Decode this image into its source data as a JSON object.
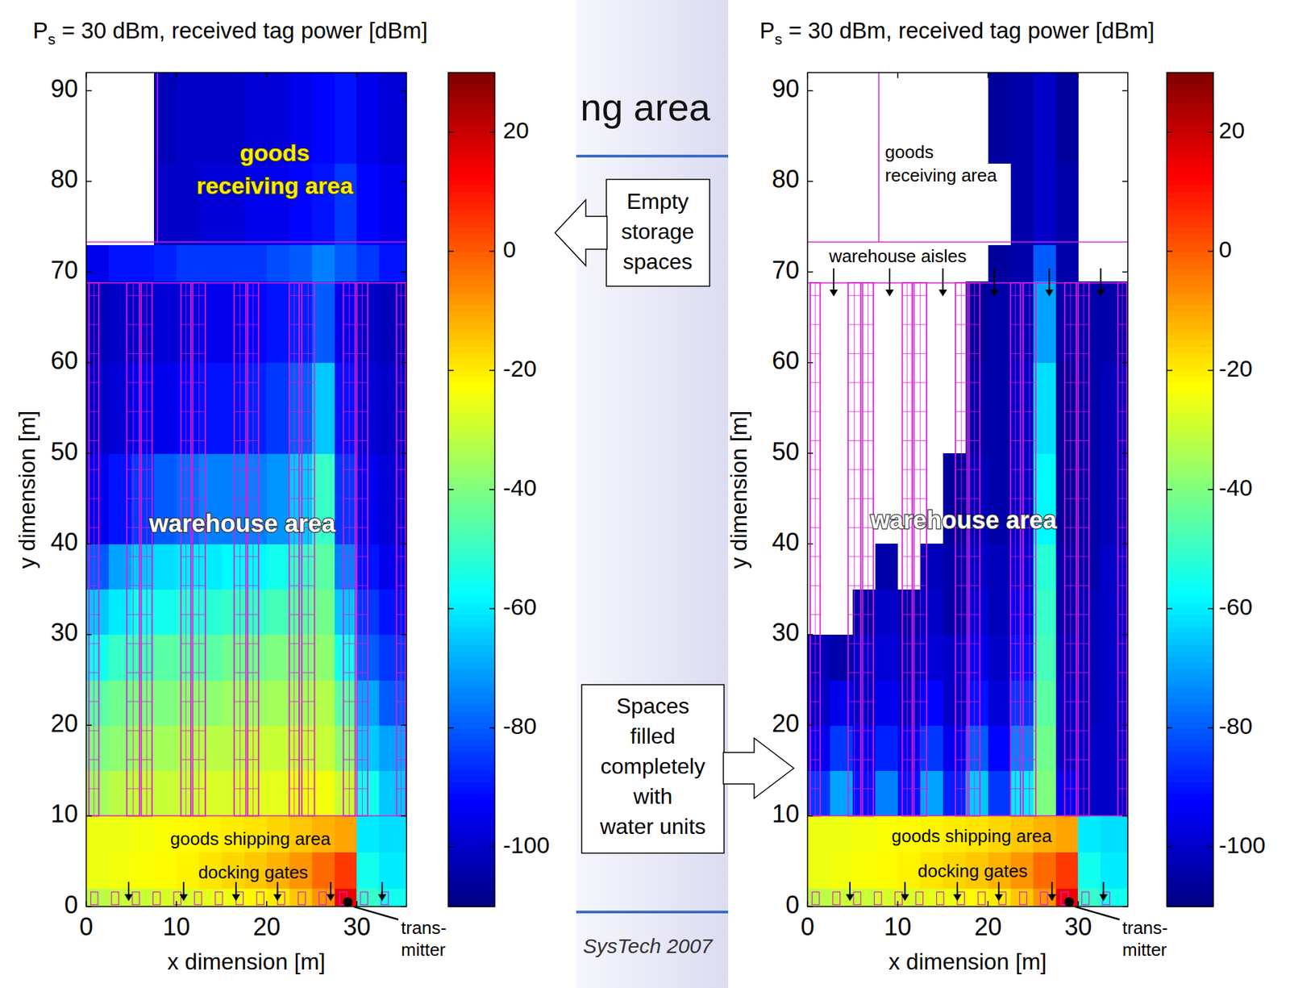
{
  "slide": {
    "title": "ng area",
    "footer": "SysTech 2007",
    "callouts": [
      {
        "lines": [
          "Empty",
          "storage",
          "spaces"
        ]
      },
      {
        "lines": [
          "Spaces",
          "filled",
          "completely",
          "with",
          "water units"
        ]
      }
    ]
  },
  "chart_data": [
    {
      "type": "heatmap",
      "title": "Ps = 30 dBm, received tag power [dBm]",
      "x_label": "x dimension [m]",
      "y_label": "y dimension [m]",
      "xlim": [
        0,
        35.5
      ],
      "ylim": [
        0,
        92
      ],
      "xticks": [
        0,
        10,
        20,
        30
      ],
      "yticks": [
        0,
        10,
        20,
        30,
        40,
        50,
        60,
        70,
        80,
        90
      ],
      "x_edges": [
        0,
        2.5,
        5,
        7.5,
        10,
        12.5,
        15,
        17.5,
        20,
        22.5,
        25,
        27.5,
        30,
        32.5,
        35.5
      ],
      "y_edges": [
        0,
        2,
        6,
        10,
        15,
        20,
        25,
        30,
        35,
        40,
        50,
        60,
        69,
        73,
        82,
        92
      ],
      "cells": [
        [
          -32,
          -30,
          -30,
          -28,
          -28,
          -26,
          -25,
          -22,
          -20,
          -15,
          -8,
          15,
          -50,
          -55
        ],
        [
          -25,
          -24,
          -23,
          -22,
          -21,
          -19,
          -17,
          -15,
          -12,
          -8,
          -2,
          5,
          -55,
          -60
        ],
        [
          -25,
          -25,
          -24,
          -23,
          -22,
          -21,
          -20,
          -19,
          -17,
          -15,
          -12,
          -10,
          -60,
          -62
        ],
        [
          -35,
          -32,
          -30,
          -30,
          -30,
          -28,
          -28,
          -27,
          -26,
          -25,
          -24,
          -30,
          -55,
          -65
        ],
        [
          -40,
          -38,
          -35,
          -35,
          -33,
          -32,
          -32,
          -30,
          -30,
          -30,
          -30,
          -38,
          -65,
          -70
        ],
        [
          -45,
          -42,
          -40,
          -40,
          -38,
          -38,
          -36,
          -36,
          -35,
          -35,
          -33,
          -45,
          -70,
          -80
        ],
        [
          -55,
          -50,
          -48,
          -45,
          -45,
          -45,
          -42,
          -42,
          -40,
          -40,
          -38,
          -55,
          -80,
          -85
        ],
        [
          -65,
          -60,
          -55,
          -55,
          -52,
          -52,
          -50,
          -50,
          -48,
          -45,
          -42,
          -65,
          -85,
          -90
        ],
        [
          -80,
          -70,
          -65,
          -62,
          -60,
          -60,
          -58,
          -58,
          -55,
          -50,
          -45,
          -75,
          -90,
          -95
        ],
        [
          -95,
          -90,
          -85,
          -80,
          -78,
          -75,
          -75,
          -75,
          -72,
          -65,
          -50,
          -85,
          -95,
          -98
        ],
        [
          -100,
          -98,
          -95,
          -95,
          -92,
          -90,
          -90,
          -88,
          -85,
          -80,
          -65,
          -90,
          -98,
          -100
        ],
        [
          -102,
          -100,
          -100,
          -98,
          -98,
          -95,
          -95,
          -92,
          -90,
          -88,
          -80,
          -95,
          -100,
          -102
        ],
        [
          -95,
          -90,
          -90,
          -88,
          -85,
          -85,
          -85,
          -85,
          -82,
          -80,
          -75,
          -80,
          -85,
          -90
        ],
        [
          null,
          null,
          null,
          -100,
          -100,
          -98,
          -98,
          -95,
          -95,
          -92,
          -90,
          -85,
          -92,
          -95
        ],
        [
          null,
          null,
          null,
          -102,
          -100,
          -100,
          -100,
          -98,
          -98,
          -95,
          -92,
          -90,
          -95,
          -98
        ]
      ],
      "color_range": [
        -110,
        30
      ],
      "color_ticks": [
        20,
        0,
        -20,
        -40,
        -60,
        -80,
        -100
      ],
      "transmitter": {
        "x": 29,
        "y": 0.5,
        "label": [
          "trans-",
          "mitter"
        ]
      },
      "labels": {
        "receiving": [
          "goods",
          "receiving area"
        ],
        "warehouse": [
          "warehouse area"
        ],
        "shipping": [
          "goods shipping area"
        ],
        "docking": [
          "docking gates"
        ]
      }
    },
    {
      "type": "heatmap",
      "title": "Ps = 30 dBm, received tag power [dBm]",
      "x_label": "x dimension [m]",
      "y_label": "y dimension [m]",
      "xlim": [
        0,
        35.5
      ],
      "ylim": [
        0,
        92
      ],
      "xticks": [
        0,
        10,
        20,
        30
      ],
      "yticks": [
        0,
        10,
        20,
        30,
        40,
        50,
        60,
        70,
        80,
        90
      ],
      "x_edges": [
        0,
        2.5,
        5,
        7.5,
        10,
        12.5,
        15,
        17.5,
        20,
        22.5,
        25,
        27.5,
        30,
        32.5,
        35.5
      ],
      "y_edges": [
        0,
        2,
        6,
        10,
        15,
        20,
        25,
        30,
        35,
        40,
        50,
        60,
        69,
        73,
        82,
        92
      ],
      "cells": [
        [
          -32,
          -30,
          -30,
          -28,
          -28,
          -26,
          -25,
          -22,
          -20,
          -15,
          -8,
          15,
          -50,
          -55
        ],
        [
          -25,
          -24,
          -23,
          -22,
          -21,
          -19,
          -17,
          -15,
          -12,
          -8,
          -2,
          5,
          -55,
          -60
        ],
        [
          -25,
          -25,
          -24,
          -23,
          -22,
          -21,
          -20,
          -19,
          -17,
          -15,
          -12,
          -10,
          -60,
          -62
        ],
        [
          -85,
          -70,
          -90,
          -75,
          -90,
          -70,
          -88,
          -65,
          -85,
          -60,
          -40,
          -95,
          -100,
          -100
        ],
        [
          -95,
          -85,
          -95,
          -88,
          -95,
          -85,
          -95,
          -80,
          -92,
          -75,
          -42,
          -100,
          -100,
          -100
        ],
        [
          -100,
          -95,
          -100,
          -95,
          -100,
          -92,
          -100,
          -90,
          -98,
          -85,
          -45,
          -100,
          -102,
          -100
        ],
        [
          -102,
          -104,
          -100,
          -98,
          -102,
          -98,
          -100,
          -95,
          -100,
          -90,
          -48,
          -102,
          -102,
          -100
        ],
        [
          null,
          null,
          -104,
          -100,
          -104,
          -100,
          -104,
          -98,
          -102,
          -95,
          -50,
          -104,
          -102,
          -100
        ],
        [
          null,
          null,
          null,
          -104,
          null,
          -102,
          -104,
          -100,
          -102,
          -98,
          -52,
          -104,
          -104,
          -100
        ],
        [
          null,
          null,
          null,
          null,
          null,
          null,
          -106,
          -102,
          -104,
          -100,
          -58,
          -106,
          -104,
          -102
        ],
        [
          null,
          null,
          null,
          null,
          null,
          null,
          null,
          -104,
          -104,
          -100,
          -62,
          -106,
          -104,
          -102
        ],
        [
          null,
          null,
          null,
          null,
          null,
          null,
          null,
          -106,
          -104,
          -102,
          -70,
          -104,
          -104,
          -104
        ],
        [
          null,
          null,
          null,
          null,
          null,
          null,
          null,
          null,
          -106,
          -104,
          -80,
          -104,
          null,
          null
        ],
        [
          null,
          null,
          null,
          null,
          null,
          null,
          null,
          null,
          null,
          -104,
          -100,
          -104,
          null,
          null
        ],
        [
          null,
          null,
          null,
          null,
          null,
          null,
          null,
          null,
          -106,
          -104,
          -100,
          -106,
          null,
          null
        ]
      ],
      "color_range": [
        -110,
        30
      ],
      "color_ticks": [
        20,
        0,
        -20,
        -40,
        -60,
        -80,
        -100
      ],
      "transmitter": {
        "x": 29,
        "y": 0.5,
        "label": [
          "trans-",
          "mitter"
        ]
      },
      "labels": {
        "receiving": [
          "goods",
          "receiving area"
        ],
        "aisles": [
          "warehouse aisles"
        ],
        "warehouse": [
          "warehouse area"
        ],
        "shipping": [
          "goods shipping area"
        ],
        "docking": [
          "docking gates"
        ]
      }
    }
  ]
}
